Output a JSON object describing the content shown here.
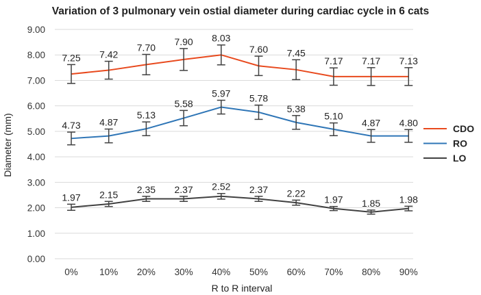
{
  "chart_data": {
    "type": "line",
    "title": "Variation of 3 pulmonary vein ostial diameter during cardiac cycle in 6 cats",
    "xlabel": "R to R interval",
    "ylabel": "Diameter (mm)",
    "ylim": [
      0,
      9
    ],
    "yticks": [
      "0.00",
      "1.00",
      "2.00",
      "3.00",
      "4.00",
      "5.00",
      "6.00",
      "7.00",
      "8.00",
      "9.00"
    ],
    "grid": true,
    "legend_position": "right",
    "categories": [
      "0%",
      "10%",
      "20%",
      "30%",
      "40%",
      "50%",
      "60%",
      "70%",
      "80%",
      "90%"
    ],
    "series": [
      {
        "name": "CDO",
        "color": "#e8491d",
        "values": [
          7.25,
          7.42,
          7.7,
          7.9,
          8.03,
          7.6,
          7.45,
          7.17,
          7.17,
          7.13
        ],
        "plotted": [
          7.25,
          7.4,
          7.62,
          7.82,
          8.0,
          7.57,
          7.42,
          7.15,
          7.15,
          7.15
        ],
        "error": [
          0.37,
          0.35,
          0.4,
          0.43,
          0.39,
          0.38,
          0.39,
          0.34,
          0.35,
          0.35
        ],
        "labels": [
          "7.25",
          "7.42",
          "7.70",
          "7.90",
          "8.03",
          "7.60",
          "7.45",
          "7.17",
          "7.17",
          "7.13"
        ]
      },
      {
        "name": "RO",
        "color": "#2e75b6",
        "values": [
          4.73,
          4.87,
          5.13,
          5.58,
          5.97,
          5.78,
          5.38,
          5.1,
          4.87,
          4.8
        ],
        "plotted": [
          4.72,
          4.82,
          5.1,
          5.52,
          5.95,
          5.75,
          5.35,
          5.08,
          4.82,
          4.82
        ],
        "error": [
          0.25,
          0.27,
          0.27,
          0.3,
          0.27,
          0.28,
          0.27,
          0.25,
          0.25,
          0.25
        ],
        "labels": [
          "4.73",
          "4.87",
          "5.13",
          "5.58",
          "5.97",
          "5.78",
          "5.38",
          "5.10",
          "4.87",
          "4.80"
        ]
      },
      {
        "name": "LO",
        "color": "#404040",
        "values": [
          1.97,
          2.15,
          2.35,
          2.37,
          2.52,
          2.37,
          2.22,
          1.97,
          1.85,
          1.98
        ],
        "plotted": [
          2.02,
          2.15,
          2.35,
          2.35,
          2.45,
          2.35,
          2.2,
          1.97,
          1.83,
          1.97
        ],
        "error": [
          0.12,
          0.1,
          0.1,
          0.1,
          0.11,
          0.1,
          0.1,
          0.08,
          0.08,
          0.09
        ],
        "labels": [
          "1.97",
          "2.15",
          "2.35",
          "2.37",
          "2.52",
          "2.37",
          "2.22",
          "1.97",
          "1.85",
          "1.98"
        ]
      }
    ]
  }
}
